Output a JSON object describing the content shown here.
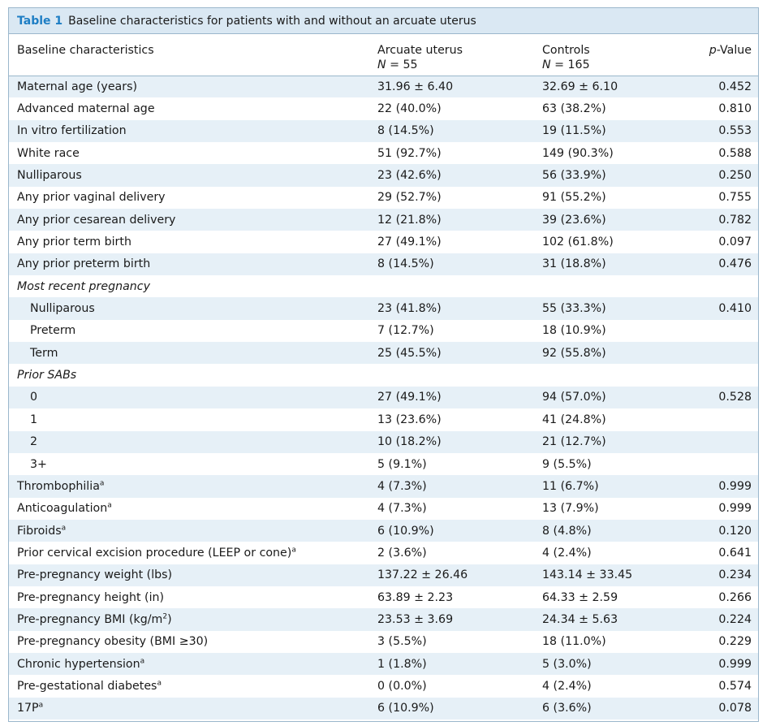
{
  "caption": {
    "label": "Table 1",
    "text": "Baseline characteristics for patients with and without an arcuate uterus"
  },
  "header": {
    "col1": "Baseline characteristics",
    "col2_line1": "Arcuate uterus",
    "col2_line2": "N = 55",
    "col3_line1": "Controls",
    "col3_line2": "N = 165",
    "col4": "p-Value"
  },
  "rows": [
    {
      "label": "Maternal age (years)",
      "a": "31.96 ± 6.40",
      "c": "32.69 ± 6.10",
      "p": "0.452"
    },
    {
      "label": "Advanced maternal age",
      "a": "22 (40.0%)",
      "c": "63 (38.2%)",
      "p": "0.810"
    },
    {
      "label": "In vitro fertilization",
      "a": "8 (14.5%)",
      "c": "19 (11.5%)",
      "p": "0.553"
    },
    {
      "label": "White race",
      "a": "51 (92.7%)",
      "c": "149 (90.3%)",
      "p": "0.588"
    },
    {
      "label": "Nulliparous",
      "a": "23 (42.6%)",
      "c": "56 (33.9%)",
      "p": "0.250"
    },
    {
      "label": "Any prior vaginal delivery",
      "a": "29 (52.7%)",
      "c": "91 (55.2%)",
      "p": "0.755"
    },
    {
      "label": "Any prior cesarean delivery",
      "a": "12 (21.8%)",
      "c": "39 (23.6%)",
      "p": "0.782"
    },
    {
      "label": "Any prior term birth",
      "a": "27 (49.1%)",
      "c": "102 (61.8%)",
      "p": "0.097"
    },
    {
      "label": "Any prior preterm birth",
      "a": "8 (14.5%)",
      "c": "31 (18.8%)",
      "p": "0.476"
    },
    {
      "label": "Most recent pregnancy",
      "a": "",
      "c": "",
      "p": ""
    },
    {
      "label": "Nulliparous",
      "a": "23 (41.8%)",
      "c": "55 (33.3%)",
      "p": "0.410"
    },
    {
      "label": "Preterm",
      "a": "7 (12.7%)",
      "c": "18 (10.9%)",
      "p": ""
    },
    {
      "label": "Term",
      "a": "25 (45.5%)",
      "c": "92 (55.8%)",
      "p": ""
    },
    {
      "label": "Prior SABs",
      "a": "",
      "c": "",
      "p": ""
    },
    {
      "label": "0",
      "a": "27 (49.1%)",
      "c": "94 (57.0%)",
      "p": "0.528"
    },
    {
      "label": "1",
      "a": "13 (23.6%)",
      "c": "41 (24.8%)",
      "p": ""
    },
    {
      "label": "2",
      "a": "10 (18.2%)",
      "c": "21 (12.7%)",
      "p": ""
    },
    {
      "label": "3+",
      "a": "5 (9.1%)",
      "c": "9 (5.5%)",
      "p": ""
    },
    {
      "label": "Thrombophilia",
      "sup": "a",
      "a": "4 (7.3%)",
      "c": "11 (6.7%)",
      "p": "0.999"
    },
    {
      "label": "Anticoagulation",
      "sup": "a",
      "a": "4 (7.3%)",
      "c": "13 (7.9%)",
      "p": "0.999"
    },
    {
      "label": "Fibroids",
      "sup": "a",
      "a": "6 (10.9%)",
      "c": "8 (4.8%)",
      "p": "0.120"
    },
    {
      "label": "Prior cervical excision procedure (LEEP or cone)",
      "sup": "a",
      "a": "2 (3.6%)",
      "c": "4 (2.4%)",
      "p": "0.641"
    },
    {
      "label": "Pre-pregnancy weight (lbs)",
      "a": "137.22 ± 26.46",
      "c": "143.14 ± 33.45",
      "p": "0.234"
    },
    {
      "label": "Pre-pregnancy height (in)",
      "a": "63.89 ± 2.23",
      "c": "64.33 ± 2.59",
      "p": "0.266"
    },
    {
      "label": "Pre-pregnancy BMI (kg/m",
      "sup": "2",
      "suffix": ")",
      "a": "23.53 ± 3.69",
      "c": "24.34 ± 5.63",
      "p": "0.224"
    },
    {
      "label": "Pre-pregnancy obesity (BMI ≥30)",
      "a": "3 (5.5%)",
      "c": "18 (11.0%)",
      "p": "0.229"
    },
    {
      "label": "Chronic hypertension",
      "sup": "a",
      "a": "1 (1.8%)",
      "c": "5 (3.0%)",
      "p": "0.999"
    },
    {
      "label": "Pre-gestational diabetes",
      "sup": "a",
      "a": "0 (0.0%)",
      "c": "4 (2.4%)",
      "p": "0.574"
    },
    {
      "label": "17P",
      "sup": "a",
      "a": "6 (10.9%)",
      "c": "6 (3.6%)",
      "p": "0.078"
    }
  ]
}
